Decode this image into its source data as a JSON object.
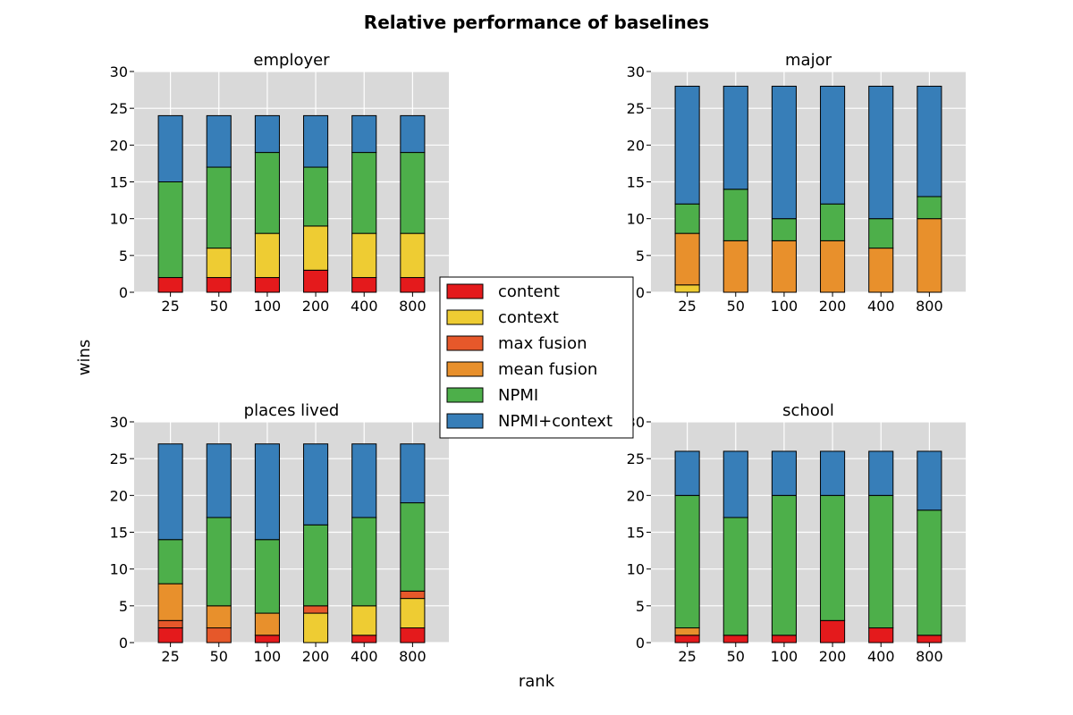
{
  "title": "Relative performance of baselines",
  "xlabel": "rank",
  "ylabel": "wins",
  "legend": {
    "placement": "center",
    "entries": [
      {
        "label": "content",
        "color": "#e41a1c"
      },
      {
        "label": "context",
        "color": "#eecc33"
      },
      {
        "label": "max fusion",
        "color": "#e6582a"
      },
      {
        "label": "mean fusion",
        "color": "#e8902c"
      },
      {
        "label": "NPMI",
        "color": "#4daf4a"
      },
      {
        "label": "NPMI+context",
        "color": "#377eb8"
      }
    ]
  },
  "chart_data": [
    {
      "type": "bar",
      "stacked": true,
      "title": "employer",
      "categories": [
        "25",
        "50",
        "100",
        "200",
        "400",
        "800"
      ],
      "ylim": [
        0,
        30
      ],
      "yticks": [
        0,
        5,
        10,
        15,
        20,
        25,
        30
      ],
      "grid": true,
      "series": [
        {
          "name": "content",
          "color": "#e41a1c",
          "values": [
            2,
            2,
            2,
            3,
            2,
            2
          ]
        },
        {
          "name": "context",
          "color": "#eecc33",
          "values": [
            0,
            4,
            6,
            6,
            6,
            6
          ]
        },
        {
          "name": "max fusion",
          "color": "#e6582a",
          "values": [
            0,
            0,
            0,
            0,
            0,
            0
          ]
        },
        {
          "name": "mean fusion",
          "color": "#e8902c",
          "values": [
            0,
            0,
            0,
            0,
            0,
            0
          ]
        },
        {
          "name": "NPMI",
          "color": "#4daf4a",
          "values": [
            13,
            11,
            11,
            8,
            11,
            11
          ]
        },
        {
          "name": "NPMI+context",
          "color": "#377eb8",
          "values": [
            9,
            7,
            5,
            7,
            5,
            5
          ]
        }
      ]
    },
    {
      "type": "bar",
      "stacked": true,
      "title": "major",
      "categories": [
        "25",
        "50",
        "100",
        "200",
        "400",
        "800"
      ],
      "ylim": [
        0,
        30
      ],
      "yticks": [
        0,
        5,
        10,
        15,
        20,
        25,
        30
      ],
      "grid": true,
      "series": [
        {
          "name": "content",
          "color": "#e41a1c",
          "values": [
            0,
            0,
            0,
            0,
            0,
            0
          ]
        },
        {
          "name": "context",
          "color": "#eecc33",
          "values": [
            1,
            0,
            0,
            0,
            0,
            0
          ]
        },
        {
          "name": "max fusion",
          "color": "#e6582a",
          "values": [
            0,
            0,
            0,
            0,
            0,
            0
          ]
        },
        {
          "name": "mean fusion",
          "color": "#e8902c",
          "values": [
            7,
            7,
            7,
            7,
            6,
            10
          ]
        },
        {
          "name": "NPMI",
          "color": "#4daf4a",
          "values": [
            4,
            7,
            3,
            5,
            4,
            3
          ]
        },
        {
          "name": "NPMI+context",
          "color": "#377eb8",
          "values": [
            16,
            14,
            18,
            16,
            18,
            15
          ]
        }
      ]
    },
    {
      "type": "bar",
      "stacked": true,
      "title": "places lived",
      "categories": [
        "25",
        "50",
        "100",
        "200",
        "400",
        "800"
      ],
      "ylim": [
        0,
        30
      ],
      "yticks": [
        0,
        5,
        10,
        15,
        20,
        25,
        30
      ],
      "grid": true,
      "series": [
        {
          "name": "content",
          "color": "#e41a1c",
          "values": [
            2,
            0,
            1,
            0,
            1,
            2
          ]
        },
        {
          "name": "context",
          "color": "#eecc33",
          "values": [
            0,
            0,
            0,
            4,
            4,
            4
          ]
        },
        {
          "name": "max fusion",
          "color": "#e6582a",
          "values": [
            1,
            2,
            0,
            1,
            0,
            1
          ]
        },
        {
          "name": "mean fusion",
          "color": "#e8902c",
          "values": [
            5,
            3,
            3,
            0,
            0,
            0
          ]
        },
        {
          "name": "NPMI",
          "color": "#4daf4a",
          "values": [
            6,
            12,
            10,
            11,
            12,
            12
          ]
        },
        {
          "name": "NPMI+context",
          "color": "#377eb8",
          "values": [
            13,
            10,
            13,
            11,
            10,
            8
          ]
        }
      ]
    },
    {
      "type": "bar",
      "stacked": true,
      "title": "school",
      "categories": [
        "25",
        "50",
        "100",
        "200",
        "400",
        "800"
      ],
      "ylim": [
        0,
        30
      ],
      "yticks": [
        0,
        5,
        10,
        15,
        20,
        25,
        30
      ],
      "grid": true,
      "series": [
        {
          "name": "content",
          "color": "#e41a1c",
          "values": [
            1,
            1,
            1,
            3,
            2,
            1
          ]
        },
        {
          "name": "context",
          "color": "#eecc33",
          "values": [
            0,
            0,
            0,
            0,
            0,
            0
          ]
        },
        {
          "name": "max fusion",
          "color": "#e6582a",
          "values": [
            0,
            0,
            0,
            0,
            0,
            0
          ]
        },
        {
          "name": "mean fusion",
          "color": "#e8902c",
          "values": [
            1,
            0,
            0,
            0,
            0,
            0
          ]
        },
        {
          "name": "NPMI",
          "color": "#4daf4a",
          "values": [
            18,
            16,
            19,
            17,
            18,
            17
          ]
        },
        {
          "name": "NPMI+context",
          "color": "#377eb8",
          "values": [
            6,
            9,
            6,
            6,
            6,
            8
          ]
        }
      ]
    }
  ]
}
